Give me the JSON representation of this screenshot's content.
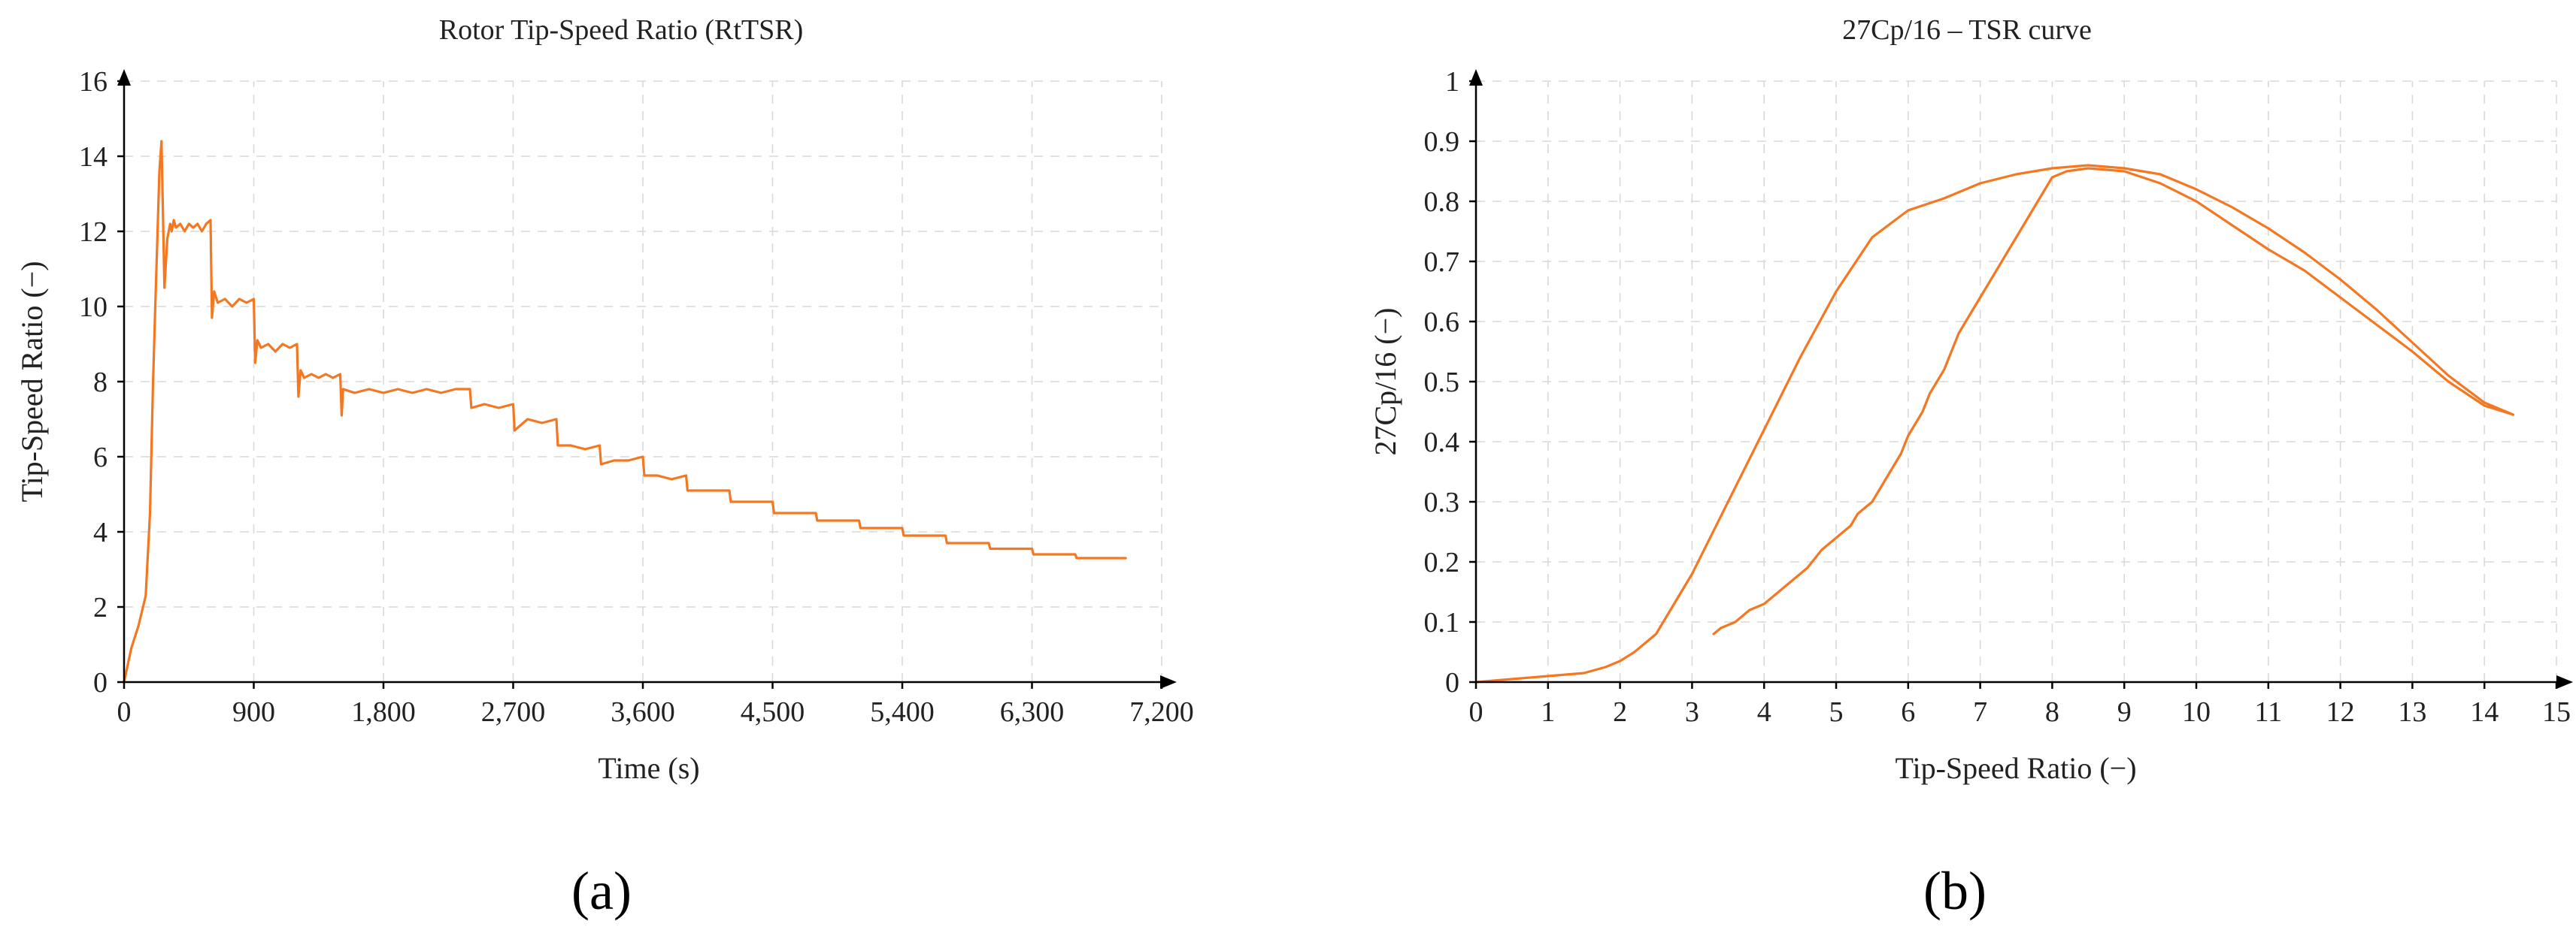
{
  "colors": {
    "series": "#f47721",
    "grid": "#d9d9d9",
    "axis": "#000000"
  },
  "chart_data": [
    {
      "type": "line",
      "title": "Rotor Tip-Speed Ratio (RtTSR)",
      "xlabel": "Time (s)",
      "ylabel": "Tip-Speed Ratio (−)",
      "panel_label": "(a)",
      "xlim": [
        0,
        7200
      ],
      "ylim": [
        0,
        16
      ],
      "xticks": [
        0,
        900,
        1800,
        2700,
        3600,
        4500,
        5400,
        6300,
        7200
      ],
      "xtick_labels": [
        "0",
        "900",
        "1,800",
        "2,700",
        "3,600",
        "4,500",
        "5,400",
        "6,300",
        "7,200"
      ],
      "yticks": [
        0,
        2,
        4,
        6,
        8,
        10,
        12,
        14,
        16
      ],
      "ytick_labels": [
        "0",
        "2",
        "4",
        "6",
        "8",
        "10",
        "12",
        "14",
        "16"
      ],
      "grid": true,
      "series": [
        {
          "x": [
            0,
            50,
            100,
            150,
            180,
            200,
            215,
            230,
            245,
            260,
            280,
            300,
            320,
            330,
            345,
            360,
            390,
            420,
            450,
            480,
            510,
            540,
            570,
            600,
            610,
            625,
            650,
            700,
            750,
            800,
            850,
            900,
            910,
            925,
            950,
            1000,
            1050,
            1100,
            1150,
            1200,
            1210,
            1225,
            1250,
            1300,
            1350,
            1400,
            1450,
            1500,
            1510,
            1520,
            1600,
            1700,
            1800,
            1900,
            2000,
            2100,
            2200,
            2300,
            2400,
            2410,
            2500,
            2600,
            2700,
            2710,
            2800,
            2900,
            3000,
            3010,
            3100,
            3200,
            3300,
            3310,
            3400,
            3500,
            3600,
            3610,
            3700,
            3800,
            3900,
            3910,
            4000,
            4100,
            4200,
            4210,
            4300,
            4400,
            4500,
            4510,
            4600,
            4700,
            4800,
            4810,
            4900,
            5000,
            5100,
            5110,
            5200,
            5300,
            5400,
            5410,
            5500,
            5600,
            5700,
            5710,
            5800,
            5900,
            6000,
            6010,
            6100,
            6200,
            6300,
            6310,
            6400,
            6500,
            6600,
            6610,
            6700,
            6800,
            6950
          ],
          "y": [
            0,
            0.9,
            1.5,
            2.3,
            4.5,
            7.8,
            9.8,
            11.7,
            13.6,
            14.4,
            10.5,
            11.8,
            12.2,
            12.0,
            12.3,
            12.1,
            12.2,
            12.0,
            12.2,
            12.1,
            12.2,
            12.0,
            12.2,
            12.3,
            9.7,
            10.4,
            10.1,
            10.2,
            10.0,
            10.2,
            10.1,
            10.2,
            8.5,
            9.1,
            8.9,
            9.0,
            8.8,
            9.0,
            8.9,
            9.0,
            7.6,
            8.3,
            8.1,
            8.2,
            8.1,
            8.2,
            8.1,
            8.2,
            7.1,
            7.8,
            7.7,
            7.8,
            7.7,
            7.8,
            7.7,
            7.8,
            7.7,
            7.8,
            7.8,
            7.3,
            7.4,
            7.3,
            7.4,
            6.7,
            7.0,
            6.9,
            7.0,
            6.3,
            6.3,
            6.2,
            6.3,
            5.8,
            5.9,
            5.9,
            6.0,
            5.5,
            5.5,
            5.4,
            5.5,
            5.1,
            5.1,
            5.1,
            5.1,
            4.8,
            4.8,
            4.8,
            4.8,
            4.5,
            4.5,
            4.5,
            4.5,
            4.3,
            4.3,
            4.3,
            4.3,
            4.1,
            4.1,
            4.1,
            4.1,
            3.9,
            3.9,
            3.9,
            3.9,
            3.7,
            3.7,
            3.7,
            3.7,
            3.55,
            3.55,
            3.55,
            3.55,
            3.4,
            3.4,
            3.4,
            3.4,
            3.3,
            3.3,
            3.3,
            3.3
          ]
        }
      ]
    },
    {
      "type": "line",
      "title": "27Cp/16 – TSR curve",
      "xlabel": "Tip-Speed Ratio (−)",
      "ylabel": "27Cp/16 (−)",
      "panel_label": "(b)",
      "xlim": [
        0,
        15
      ],
      "ylim": [
        0,
        1
      ],
      "xticks": [
        0,
        1,
        2,
        3,
        4,
        5,
        6,
        7,
        8,
        9,
        10,
        11,
        12,
        13,
        14,
        15
      ],
      "xtick_labels": [
        "0",
        "1",
        "2",
        "3",
        "4",
        "5",
        "6",
        "7",
        "8",
        "9",
        "10",
        "11",
        "12",
        "13",
        "14",
        "15"
      ],
      "yticks": [
        0,
        0.1,
        0.2,
        0.3,
        0.4,
        0.5,
        0.6,
        0.7,
        0.8,
        0.9,
        1
      ],
      "ytick_labels": [
        "0",
        "0.1",
        "0.2",
        "0.3",
        "0.4",
        "0.5",
        "0.6",
        "0.7",
        "0.8",
        "0.9",
        "1"
      ],
      "grid": true,
      "series": [
        {
          "x": [
            0,
            0.5,
            1.0,
            1.5,
            1.8,
            2.0,
            2.2,
            2.5,
            3.0,
            3.5,
            4.0,
            4.5,
            5.0,
            5.5,
            6.0,
            6.5,
            7.0,
            7.5,
            8.0,
            8.5,
            9.0,
            9.5,
            10.0,
            10.5,
            11.0,
            11.5,
            12.0,
            12.5,
            13.0,
            13.5,
            14.0,
            14.4,
            14.0,
            13.5,
            13.0,
            12.5,
            12.0,
            11.5,
            11.0,
            10.5,
            10.0,
            9.5,
            9.0,
            8.5,
            8.2,
            8.0,
            7.8,
            7.6,
            7.4,
            7.2,
            7.0,
            6.9,
            6.8,
            6.7,
            6.6,
            6.5,
            6.4,
            6.3,
            6.2,
            6.1,
            6.0,
            5.9,
            5.8,
            5.7,
            5.6,
            5.5,
            5.4,
            5.3,
            5.2,
            5.0,
            4.8,
            4.6,
            4.4,
            4.2,
            4.0,
            3.8,
            3.6,
            3.4,
            3.3
          ],
          "y": [
            0,
            0.005,
            0.01,
            0.015,
            0.025,
            0.035,
            0.05,
            0.08,
            0.18,
            0.3,
            0.42,
            0.54,
            0.65,
            0.74,
            0.785,
            0.805,
            0.83,
            0.845,
            0.855,
            0.86,
            0.855,
            0.845,
            0.82,
            0.79,
            0.755,
            0.715,
            0.67,
            0.62,
            0.565,
            0.51,
            0.465,
            0.445,
            0.46,
            0.5,
            0.55,
            0.595,
            0.64,
            0.685,
            0.72,
            0.76,
            0.8,
            0.83,
            0.85,
            0.855,
            0.85,
            0.84,
            0.8,
            0.76,
            0.72,
            0.68,
            0.64,
            0.62,
            0.6,
            0.58,
            0.55,
            0.52,
            0.5,
            0.48,
            0.45,
            0.43,
            0.41,
            0.38,
            0.36,
            0.34,
            0.32,
            0.3,
            0.29,
            0.28,
            0.26,
            0.24,
            0.22,
            0.19,
            0.17,
            0.15,
            0.13,
            0.12,
            0.1,
            0.09,
            0.08
          ]
        }
      ]
    }
  ]
}
